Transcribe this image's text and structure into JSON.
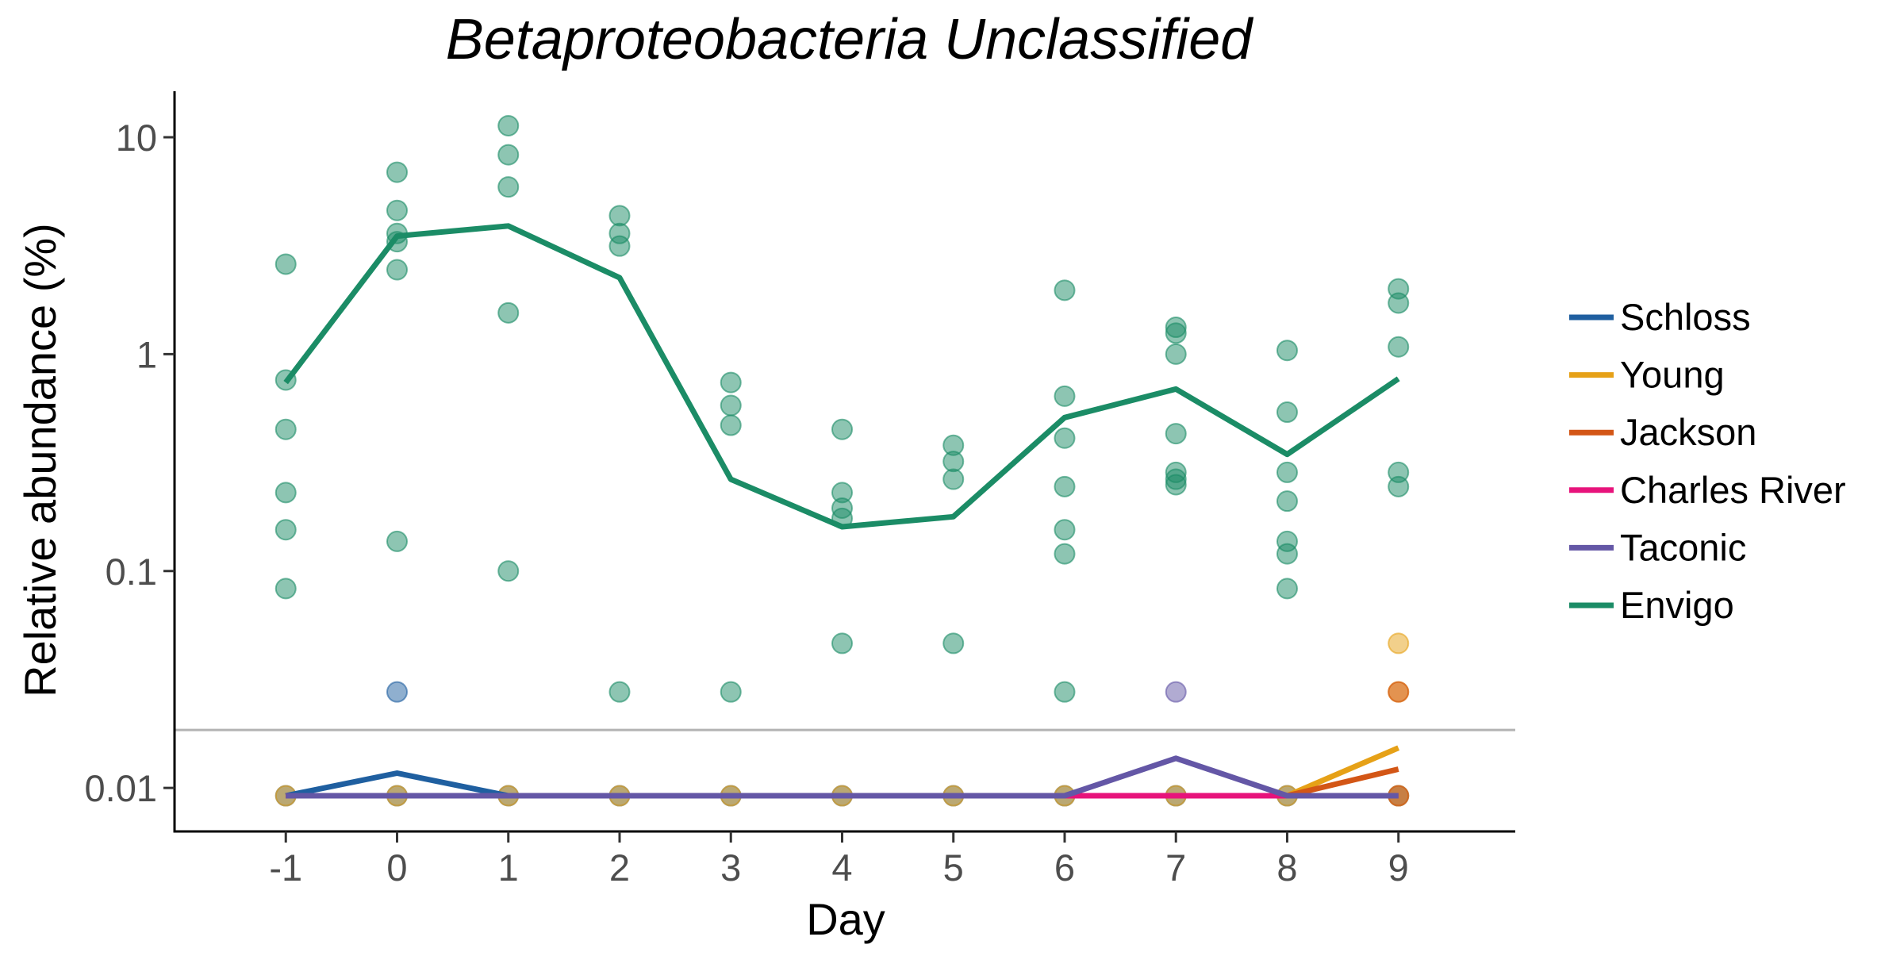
{
  "chart_data": {
    "type": "scatter",
    "title": "Betaproteobacteria Unclassified",
    "xlabel": "Day",
    "ylabel": "Relative abundance (%)",
    "x_ticks": [
      "-1",
      "0",
      "1",
      "2",
      "3",
      "4",
      "5",
      "6",
      "7",
      "8",
      "9"
    ],
    "y_ticks": [
      {
        "value": 0.01,
        "label": "0.01"
      },
      {
        "value": 0.1,
        "label": "0.1"
      },
      {
        "value": 1,
        "label": "1"
      },
      {
        "value": 10,
        "label": "10"
      }
    ],
    "y_scale": "log",
    "xlim": [
      -2,
      10.05
    ],
    "ylim": [
      0.0063,
      16.3
    ],
    "detection_limit": 0.0185,
    "grid": false,
    "legend_position": "right",
    "series": [
      {
        "name": "Schloss",
        "color": "#1f5fa0",
        "x": [
          -1,
          0,
          1,
          2,
          3,
          4,
          5,
          6,
          7,
          8,
          9
        ],
        "y": [
          0.0092,
          0.0117,
          0.0092,
          0.0092,
          0.0092,
          0.0092,
          0.0092,
          0.0092,
          0.0092,
          0.0092,
          0.0092
        ],
        "points": [
          {
            "x": -1,
            "y": 0.0092
          },
          {
            "x": 0,
            "y": 0.0277
          },
          {
            "x": 0,
            "y": 0.0092
          },
          {
            "x": 1,
            "y": 0.0092
          },
          {
            "x": 2,
            "y": 0.0092
          },
          {
            "x": 3,
            "y": 0.0092
          },
          {
            "x": 4,
            "y": 0.0092
          },
          {
            "x": 5,
            "y": 0.0092
          },
          {
            "x": 6,
            "y": 0.0092
          },
          {
            "x": 7,
            "y": 0.0092
          },
          {
            "x": 8,
            "y": 0.0092
          },
          {
            "x": 9,
            "y": 0.0092
          }
        ]
      },
      {
        "name": "Young",
        "color": "#e6a117",
        "x": [
          -1,
          0,
          1,
          2,
          3,
          4,
          5,
          6,
          7,
          8,
          9
        ],
        "y": [
          0.0092,
          0.0092,
          0.0092,
          0.0092,
          0.0092,
          0.0092,
          0.0092,
          0.0092,
          0.0092,
          0.0092,
          0.0153
        ],
        "points": [
          {
            "x": -1,
            "y": 0.0092
          },
          {
            "x": 0,
            "y": 0.0092
          },
          {
            "x": 1,
            "y": 0.0092
          },
          {
            "x": 2,
            "y": 0.0092
          },
          {
            "x": 3,
            "y": 0.0092
          },
          {
            "x": 4,
            "y": 0.0092
          },
          {
            "x": 5,
            "y": 0.0092
          },
          {
            "x": 6,
            "y": 0.0092
          },
          {
            "x": 7,
            "y": 0.0092
          },
          {
            "x": 8,
            "y": 0.0092
          },
          {
            "x": 9,
            "y": 0.0092
          },
          {
            "x": 9,
            "y": 0.0464
          },
          {
            "x": 9,
            "y": 0.0277
          }
        ]
      },
      {
        "name": "Jackson",
        "color": "#d35616",
        "x": [
          -1,
          0,
          1,
          2,
          3,
          4,
          5,
          6,
          7,
          8,
          9
        ],
        "y": [
          0.0092,
          0.0092,
          0.0092,
          0.0092,
          0.0092,
          0.0092,
          0.0092,
          0.0092,
          0.0092,
          0.0092,
          0.0122
        ],
        "points": [
          {
            "x": 9,
            "y": 0.0277
          },
          {
            "x": 9,
            "y": 0.0092
          }
        ]
      },
      {
        "name": "Charles River",
        "color": "#e7137b",
        "x": [
          -1,
          0,
          1,
          2,
          3,
          4,
          5,
          6,
          7,
          8,
          9
        ],
        "y": [
          0.0092,
          0.0092,
          0.0092,
          0.0092,
          0.0092,
          0.0092,
          0.0092,
          0.0092,
          0.0092,
          0.0092,
          0.0092
        ],
        "points": []
      },
      {
        "name": "Taconic",
        "color": "#6457a6",
        "x": [
          -1,
          0,
          1,
          2,
          3,
          4,
          5,
          6,
          7,
          8,
          9
        ],
        "y": [
          0.0092,
          0.0092,
          0.0092,
          0.0092,
          0.0092,
          0.0092,
          0.0092,
          0.0092,
          0.0137,
          0.0092,
          0.0092
        ],
        "points": [
          {
            "x": 7,
            "y": 0.0277
          }
        ]
      },
      {
        "name": "Envigo",
        "color": "#1b8c66",
        "x": [
          -1,
          0,
          1,
          2,
          3,
          4,
          5,
          6,
          7,
          8,
          9
        ],
        "y": [
          0.74,
          3.5,
          3.9,
          2.25,
          0.265,
          0.16,
          0.178,
          0.51,
          0.69,
          0.345,
          0.77
        ],
        "points": [
          {
            "x": -1,
            "y": 2.6
          },
          {
            "x": -1,
            "y": 0.76
          },
          {
            "x": -1,
            "y": 0.45
          },
          {
            "x": -1,
            "y": 0.23
          },
          {
            "x": -1,
            "y": 0.155
          },
          {
            "x": -1,
            "y": 0.083
          },
          {
            "x": 0,
            "y": 6.9
          },
          {
            "x": 0,
            "y": 4.6
          },
          {
            "x": 0,
            "y": 3.6
          },
          {
            "x": 0,
            "y": 3.3
          },
          {
            "x": 0,
            "y": 2.45
          },
          {
            "x": 0,
            "y": 0.137
          },
          {
            "x": 1,
            "y": 11.3
          },
          {
            "x": 1,
            "y": 8.3
          },
          {
            "x": 1,
            "y": 5.9
          },
          {
            "x": 1,
            "y": 1.55
          },
          {
            "x": 1,
            "y": 0.1
          },
          {
            "x": 2,
            "y": 4.35
          },
          {
            "x": 2,
            "y": 3.6
          },
          {
            "x": 2,
            "y": 3.15
          },
          {
            "x": 2,
            "y": 0.0277
          },
          {
            "x": 3,
            "y": 0.74
          },
          {
            "x": 3,
            "y": 0.58
          },
          {
            "x": 3,
            "y": 0.47
          },
          {
            "x": 3,
            "y": 0.0277
          },
          {
            "x": 4,
            "y": 0.45
          },
          {
            "x": 4,
            "y": 0.23
          },
          {
            "x": 4,
            "y": 0.195
          },
          {
            "x": 4,
            "y": 0.175
          },
          {
            "x": 4,
            "y": 0.0464
          },
          {
            "x": 5,
            "y": 0.38
          },
          {
            "x": 5,
            "y": 0.32
          },
          {
            "x": 5,
            "y": 0.265
          },
          {
            "x": 5,
            "y": 0.0464
          },
          {
            "x": 6,
            "y": 1.97
          },
          {
            "x": 6,
            "y": 0.64
          },
          {
            "x": 6,
            "y": 0.41
          },
          {
            "x": 6,
            "y": 0.245
          },
          {
            "x": 6,
            "y": 0.155
          },
          {
            "x": 6,
            "y": 0.12
          },
          {
            "x": 6,
            "y": 0.0277
          },
          {
            "x": 7,
            "y": 1.33
          },
          {
            "x": 7,
            "y": 1.25
          },
          {
            "x": 7,
            "y": 1.0
          },
          {
            "x": 7,
            "y": 0.43
          },
          {
            "x": 7,
            "y": 0.285
          },
          {
            "x": 7,
            "y": 0.265
          },
          {
            "x": 7,
            "y": 0.25
          },
          {
            "x": 8,
            "y": 1.04
          },
          {
            "x": 8,
            "y": 0.54
          },
          {
            "x": 8,
            "y": 0.285
          },
          {
            "x": 8,
            "y": 0.21
          },
          {
            "x": 8,
            "y": 0.137
          },
          {
            "x": 8,
            "y": 0.12
          },
          {
            "x": 8,
            "y": 0.083
          },
          {
            "x": 9,
            "y": 2.0
          },
          {
            "x": 9,
            "y": 1.72
          },
          {
            "x": 9,
            "y": 1.08
          },
          {
            "x": 9,
            "y": 0.285
          },
          {
            "x": 9,
            "y": 0.245
          }
        ]
      }
    ]
  }
}
